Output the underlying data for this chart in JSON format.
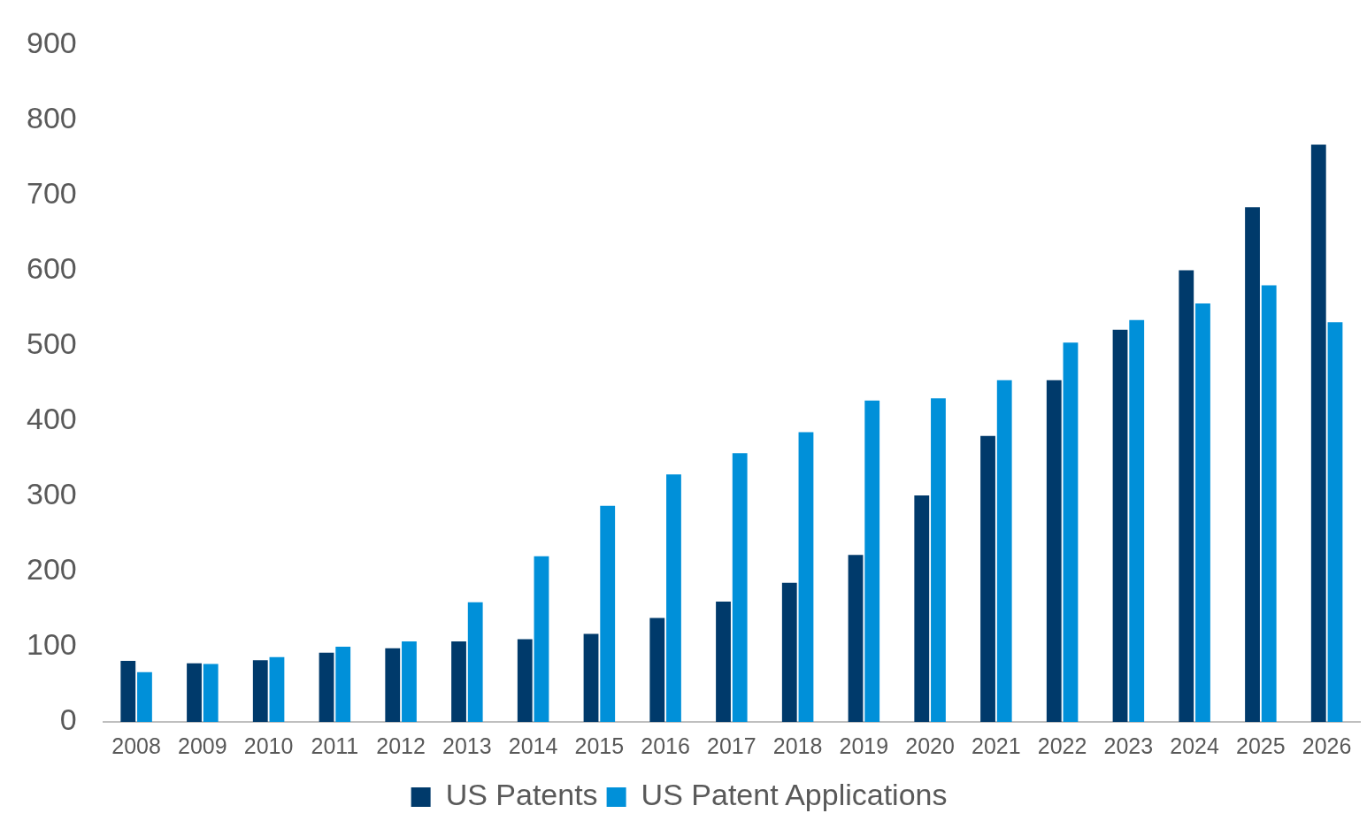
{
  "chart_data": {
    "type": "bar",
    "categories": [
      "2008",
      "2009",
      "2010",
      "2011",
      "2012",
      "2013",
      "2014",
      "2015",
      "2016",
      "2017",
      "2018",
      "2019",
      "2020",
      "2021",
      "2022",
      "2023",
      "2024",
      "2025",
      "2026"
    ],
    "series": [
      {
        "name": "US Patents",
        "color": "#003a6b",
        "values": [
          81,
          78,
          82,
          92,
          98,
          107,
          110,
          117,
          138,
          160,
          185,
          222,
          301,
          380,
          454,
          521,
          600,
          684,
          767
        ]
      },
      {
        "name": "US Patent Applications",
        "color": "#0090d9",
        "values": [
          66,
          77,
          86,
          100,
          107,
          159,
          220,
          287,
          329,
          357,
          385,
          427,
          430,
          454,
          504,
          534,
          556,
          580,
          531
        ]
      }
    ],
    "ylim": [
      0,
      900
    ],
    "yticks": [
      0,
      100,
      200,
      300,
      400,
      500,
      600,
      700,
      800,
      900
    ],
    "grid": false,
    "legend": "bottom"
  }
}
